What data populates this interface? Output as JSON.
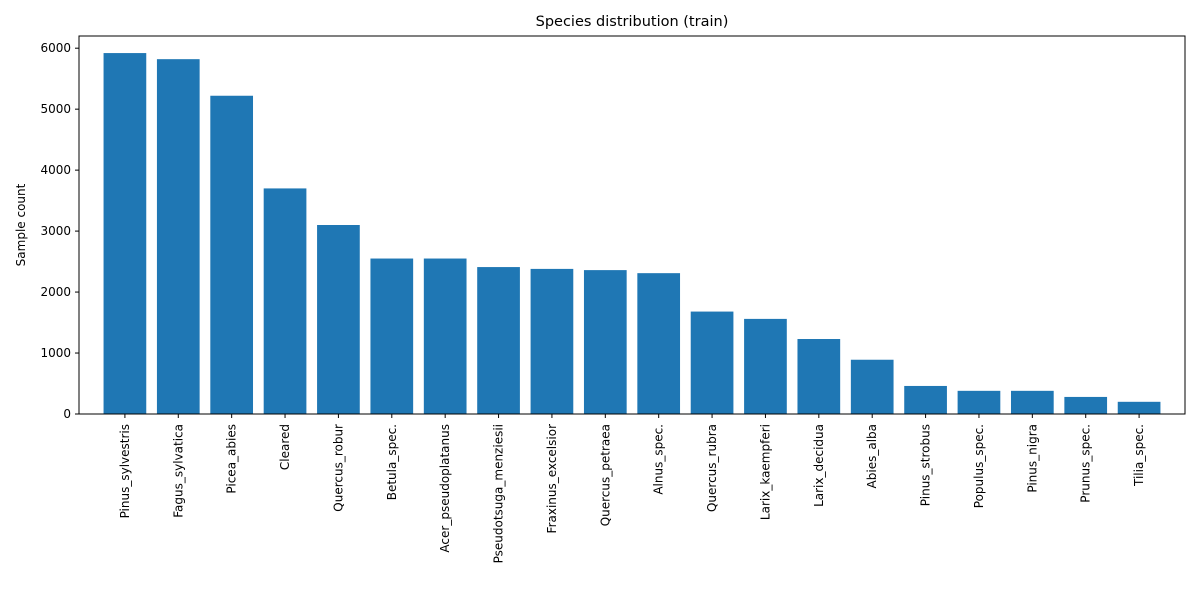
{
  "chart_data": {
    "type": "bar",
    "title": "Species distribution (train)",
    "xlabel": "",
    "ylabel": "Sample count",
    "ylim": [
      0,
      6200
    ],
    "yticks": [
      0,
      1000,
      2000,
      3000,
      4000,
      5000,
      6000
    ],
    "bar_color": "#1f77b4",
    "grid": false,
    "categories": [
      "Pinus_sylvestris",
      "Fagus_sylvatica",
      "Picea_abies",
      "Cleared",
      "Quercus_robur",
      "Betula_spec.",
      "Acer_pseudoplatanus",
      "Pseudotsuga_menziesii",
      "Fraxinus_excelsior",
      "Quercus_petraea",
      "Alnus_spec.",
      "Quercus_rubra",
      "Larix_kaempferi",
      "Larix_decidua",
      "Abies_alba",
      "Pinus_strobus",
      "Populus_spec.",
      "Pinus_nigra",
      "Prunus_spec.",
      "Tilia_spec."
    ],
    "values": [
      5920,
      5820,
      5220,
      3700,
      3100,
      2550,
      2550,
      2410,
      2380,
      2360,
      2310,
      1680,
      1560,
      1230,
      890,
      460,
      380,
      380,
      280,
      200
    ]
  }
}
